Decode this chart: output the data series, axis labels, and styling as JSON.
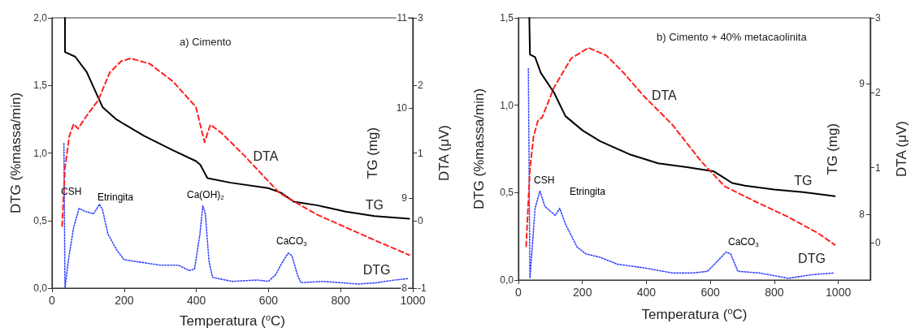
{
  "chart_data": [
    {
      "type": "line",
      "title": "a) Cimento",
      "xlabel": "Temperatura ($^{o}$C)",
      "ylabel": "DTG (%massa/min)",
      "y2label": "TG (mg)",
      "y3label": "DTA (μV)",
      "marker": "none",
      "xlim": [
        0,
        1000
      ],
      "xticks": [
        0,
        200,
        400,
        600,
        800,
        1000
      ],
      "ylim": [
        0,
        2
      ],
      "yticks": [
        {
          "value": 0,
          "label": "0,0"
        },
        {
          "value": 0.5,
          "label": "0,5"
        },
        {
          "value": 1,
          "label": "1,0"
        },
        {
          "value": 1.5,
          "label": "1,5"
        },
        {
          "value": 2,
          "label": "2,0"
        }
      ],
      "y2lim": [
        8,
        11
      ],
      "y2ticks": [
        8,
        9,
        10,
        11
      ],
      "y3lim": [
        -1,
        3
      ],
      "y3ticks": [
        -1,
        0,
        1,
        2,
        3
      ],
      "annotations": [
        "CSH",
        "Etringita",
        "Ca(OH)$_{2}$",
        "CaCO$_{3}$"
      ],
      "series": [
        {
          "name": "DTG",
          "color": "#3344ff",
          "line_style": "dotted",
          "axis": "y",
          "x": [
            33,
            36,
            45,
            60,
            75,
            90,
            115,
            132,
            140,
            155,
            180,
            200,
            250,
            300,
            350,
            380,
            395,
            410,
            418,
            425,
            435,
            445,
            480,
            500,
            570,
            600,
            620,
            640,
            655,
            665,
            680,
            690,
            750,
            800,
            850,
            900,
            950,
            985
          ],
          "values": [
            1.07,
            0.0,
            0.2,
            0.45,
            0.59,
            0.57,
            0.55,
            0.62,
            0.58,
            0.4,
            0.28,
            0.21,
            0.19,
            0.17,
            0.17,
            0.13,
            0.14,
            0.4,
            0.61,
            0.55,
            0.2,
            0.08,
            0.06,
            0.05,
            0.06,
            0.05,
            0.1,
            0.2,
            0.26,
            0.24,
            0.1,
            0.04,
            0.05,
            0.04,
            0.03,
            0.04,
            0.06,
            0.07
          ]
        },
        {
          "name": "TG",
          "color": "#000000",
          "line_style": "solid",
          "axis": "y2",
          "x": [
            36,
            36,
            64,
            96,
            140,
            176,
            200,
            255,
            335,
            399,
            411,
            431,
            495,
            599,
            634,
            670,
            734,
            814,
            894,
            990
          ],
          "values": [
            11.0,
            10.62,
            10.57,
            10.4,
            10.01,
            9.88,
            9.82,
            9.69,
            9.53,
            9.41,
            9.37,
            9.22,
            9.17,
            9.11,
            9.06,
            8.96,
            8.92,
            8.85,
            8.8,
            8.77
          ]
        },
        {
          "name": "DTA",
          "color": "#ff2020",
          "line_style": "dashed",
          "axis": "y3",
          "x": [
            28,
            36,
            48,
            60,
            72,
            96,
            128,
            160,
            192,
            219,
            271,
            335,
            399,
            415,
            423,
            439,
            471,
            535,
            630,
            678,
            734,
            814,
            894,
            990
          ],
          "values": [
            -0.08,
            0.78,
            1.25,
            1.43,
            1.36,
            1.55,
            1.78,
            2.19,
            2.36,
            2.4,
            2.32,
            2.06,
            1.68,
            1.33,
            1.16,
            1.42,
            1.29,
            0.95,
            0.41,
            0.26,
            0.09,
            -0.1,
            -0.29,
            -0.51
          ]
        }
      ]
    },
    {
      "type": "line",
      "title": "b) Cimento + 40% metacaolinita",
      "xlabel": "Temperatura ($^{o}$C)",
      "ylabel": "DTG (%massa/min)",
      "y2label": "TG (mg)",
      "y3label": "DTA (μV)",
      "marker": "none",
      "xlim": [
        0,
        1100
      ],
      "xticks": [
        0,
        200,
        400,
        600,
        800,
        1000
      ],
      "ylim": [
        0,
        1.5
      ],
      "yticks": [
        {
          "value": 0,
          "label": "0,0"
        },
        {
          "value": 0.5,
          "label": "0,5"
        },
        {
          "value": 1,
          "label": "1,0"
        },
        {
          "value": 1.5,
          "label": "1,5"
        }
      ],
      "y2lim": [
        7.5,
        9.5
      ],
      "y2ticks": [
        8,
        9
      ],
      "y3lim": [
        -0.5,
        3
      ],
      "y3ticks": [
        0,
        1,
        2,
        3
      ],
      "annotations": [
        "CSH",
        "Etringita",
        "CaCO$_{3}$"
      ],
      "series": [
        {
          "name": "DTG",
          "color": "#3344ff",
          "line_style": "dotted",
          "axis": "y",
          "x": [
            31,
            36,
            52,
            67,
            83,
            115,
            129,
            147,
            183,
            210,
            255,
            310,
            391,
            482,
            545,
            591,
            618,
            649,
            663,
            686,
            754,
            844,
            917,
            985
          ],
          "values": [
            1.21,
            0.01,
            0.41,
            0.51,
            0.42,
            0.37,
            0.41,
            0.32,
            0.19,
            0.15,
            0.13,
            0.09,
            0.07,
            0.04,
            0.04,
            0.05,
            0.1,
            0.16,
            0.15,
            0.05,
            0.04,
            0.01,
            0.03,
            0.04
          ]
        },
        {
          "name": "TG",
          "color": "#000000",
          "line_style": "solid",
          "axis": "y2",
          "x": [
            34,
            36,
            52,
            70,
            111,
            147,
            201,
            255,
            346,
            437,
            527,
            609,
            636,
            668,
            708,
            799,
            890,
            989
          ],
          "values": [
            9.5,
            9.22,
            9.2,
            9.08,
            8.93,
            8.75,
            8.64,
            8.56,
            8.46,
            8.39,
            8.36,
            8.33,
            8.29,
            8.24,
            8.22,
            8.19,
            8.17,
            8.14
          ]
        },
        {
          "name": "DTA",
          "color": "#ff2020",
          "line_style": "dashed",
          "axis": "y3",
          "x": [
            24,
            36,
            47,
            61,
            74,
            111,
            165,
            219,
            274,
            328,
            391,
            482,
            572,
            645,
            754,
            844,
            935,
            989
          ],
          "values": [
            -0.05,
            0.98,
            1.41,
            1.63,
            1.67,
            2.07,
            2.46,
            2.6,
            2.5,
            2.27,
            1.96,
            1.57,
            1.08,
            0.75,
            0.52,
            0.34,
            0.13,
            -0.03
          ]
        }
      ]
    }
  ]
}
